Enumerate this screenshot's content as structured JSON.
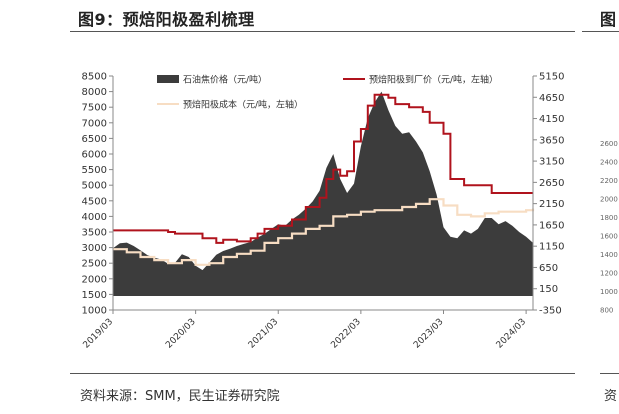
{
  "title": "图9：预焙阳极盈利梳理",
  "source": "资料来源：SMM，民生证券研究院",
  "chart_data": {
    "type": "area",
    "title": "",
    "x_ticks": [
      "2019/03",
      "2020/03",
      "2021/03",
      "2022/03",
      "2023/03",
      "2024/03"
    ],
    "x_range": [
      "2019/03",
      "2024/04"
    ],
    "left_axis": {
      "label": "",
      "min": 1000,
      "max": 8500,
      "step": 500
    },
    "right_axis": {
      "label": "",
      "min": -350,
      "max": 5150,
      "step": 500
    },
    "grid": false,
    "legend_position": "top",
    "series": [
      {
        "name": "石油焦价格（元/吨）",
        "kind": "area",
        "axis": "left",
        "color": "#3c3c3c",
        "points": [
          [
            "2019/03",
            2980
          ],
          [
            "2019/04",
            3140
          ],
          [
            "2019/05",
            3160
          ],
          [
            "2019/06",
            3050
          ],
          [
            "2019/07",
            2910
          ],
          [
            "2019/08",
            2760
          ],
          [
            "2019/09",
            2680
          ],
          [
            "2019/10",
            2620
          ],
          [
            "2019/11",
            2480
          ],
          [
            "2019/12",
            2510
          ],
          [
            "2020/01",
            2790
          ],
          [
            "2020/02",
            2700
          ],
          [
            "2020/03",
            2420
          ],
          [
            "2020/04",
            2280
          ],
          [
            "2020/05",
            2520
          ],
          [
            "2020/06",
            2770
          ],
          [
            "2020/07",
            2890
          ],
          [
            "2020/08",
            2960
          ],
          [
            "2020/09",
            3050
          ],
          [
            "2020/10",
            3120
          ],
          [
            "2020/11",
            3180
          ],
          [
            "2020/12",
            3320
          ],
          [
            "2021/01",
            3440
          ],
          [
            "2021/02",
            3600
          ],
          [
            "2021/03",
            3750
          ],
          [
            "2021/04",
            3700
          ],
          [
            "2021/05",
            3900
          ],
          [
            "2021/06",
            4050
          ],
          [
            "2021/07",
            4250
          ],
          [
            "2021/08",
            4480
          ],
          [
            "2021/09",
            4820
          ],
          [
            "2021/10",
            5550
          ],
          [
            "2021/11",
            6000
          ],
          [
            "2021/12",
            5200
          ],
          [
            "2022/01",
            4750
          ],
          [
            "2022/02",
            5050
          ],
          [
            "2022/03",
            6250
          ],
          [
            "2022/04",
            7150
          ],
          [
            "2022/05",
            7650
          ],
          [
            "2022/06",
            8000
          ],
          [
            "2022/07",
            7400
          ],
          [
            "2022/08",
            6900
          ],
          [
            "2022/09",
            6650
          ],
          [
            "2022/10",
            6700
          ],
          [
            "2022/11",
            6400
          ],
          [
            "2022/12",
            6050
          ],
          [
            "2023/01",
            5450
          ],
          [
            "2023/02",
            4700
          ],
          [
            "2023/03",
            3650
          ],
          [
            "2023/04",
            3350
          ],
          [
            "2023/05",
            3300
          ],
          [
            "2023/06",
            3550
          ],
          [
            "2023/07",
            3450
          ],
          [
            "2023/08",
            3600
          ],
          [
            "2023/09",
            3950
          ],
          [
            "2023/10",
            3950
          ],
          [
            "2023/11",
            3750
          ],
          [
            "2023/12",
            3850
          ],
          [
            "2024/01",
            3700
          ],
          [
            "2024/02",
            3500
          ],
          [
            "2024/03",
            3350
          ],
          [
            "2024/04",
            3150
          ]
        ]
      },
      {
        "name": "预焙阳极到厂价（元/吨，左轴）",
        "kind": "line",
        "axis": "left",
        "color": "#b0131d",
        "points": [
          [
            "2019/03",
            3550
          ],
          [
            "2019/11",
            3500
          ],
          [
            "2019/12",
            3450
          ],
          [
            "2020/04",
            3300
          ],
          [
            "2020/06",
            3150
          ],
          [
            "2020/07",
            3250
          ],
          [
            "2020/09",
            3200
          ],
          [
            "2020/11",
            3300
          ],
          [
            "2020/12",
            3450
          ],
          [
            "2021/01",
            3600
          ],
          [
            "2021/03",
            3700
          ],
          [
            "2021/05",
            3900
          ],
          [
            "2021/07",
            4300
          ],
          [
            "2021/09",
            4600
          ],
          [
            "2021/10",
            5200
          ],
          [
            "2021/11",
            5500
          ],
          [
            "2021/12",
            5300
          ],
          [
            "2022/01",
            5450
          ],
          [
            "2022/02",
            6400
          ],
          [
            "2022/03",
            6800
          ],
          [
            "2022/04",
            7550
          ],
          [
            "2022/05",
            7900
          ],
          [
            "2022/07",
            7800
          ],
          [
            "2022/08",
            7600
          ],
          [
            "2022/10",
            7500
          ],
          [
            "2022/12",
            7350
          ],
          [
            "2023/01",
            7000
          ],
          [
            "2023/03",
            6650
          ],
          [
            "2023/04",
            5200
          ],
          [
            "2023/06",
            5000
          ],
          [
            "2023/10",
            4750
          ],
          [
            "2024/04",
            4750
          ]
        ]
      },
      {
        "name": "预焙阳极成本（元/吨，左轴）",
        "kind": "line",
        "axis": "left",
        "color": "#f7ddc3",
        "points": [
          [
            "2019/03",
            2950
          ],
          [
            "2019/05",
            2850
          ],
          [
            "2019/07",
            2700
          ],
          [
            "2019/09",
            2600
          ],
          [
            "2019/11",
            2500
          ],
          [
            "2020/01",
            2600
          ],
          [
            "2020/03",
            2450
          ],
          [
            "2020/05",
            2500
          ],
          [
            "2020/07",
            2700
          ],
          [
            "2020/09",
            2800
          ],
          [
            "2020/11",
            2900
          ],
          [
            "2021/01",
            3150
          ],
          [
            "2021/03",
            3300
          ],
          [
            "2021/05",
            3450
          ],
          [
            "2021/07",
            3600
          ],
          [
            "2021/09",
            3700
          ],
          [
            "2021/11",
            4000
          ],
          [
            "2022/01",
            4050
          ],
          [
            "2022/03",
            4150
          ],
          [
            "2022/05",
            4200
          ],
          [
            "2022/07",
            4200
          ],
          [
            "2022/09",
            4300
          ],
          [
            "2022/11",
            4400
          ],
          [
            "2023/01",
            4550
          ],
          [
            "2023/03",
            4350
          ],
          [
            "2023/05",
            4050
          ],
          [
            "2023/07",
            4000
          ],
          [
            "2023/09",
            4100
          ],
          [
            "2023/11",
            4150
          ],
          [
            "2024/01",
            4150
          ],
          [
            "2024/03",
            4200
          ],
          [
            "2024/04",
            4250
          ]
        ]
      }
    ]
  },
  "fragment": {
    "title": "图",
    "source": "资",
    "ticks": [
      "2600",
      "2400",
      "2200",
      "2000",
      "1800",
      "1600",
      "1400",
      "1200",
      "1000",
      "800"
    ]
  }
}
